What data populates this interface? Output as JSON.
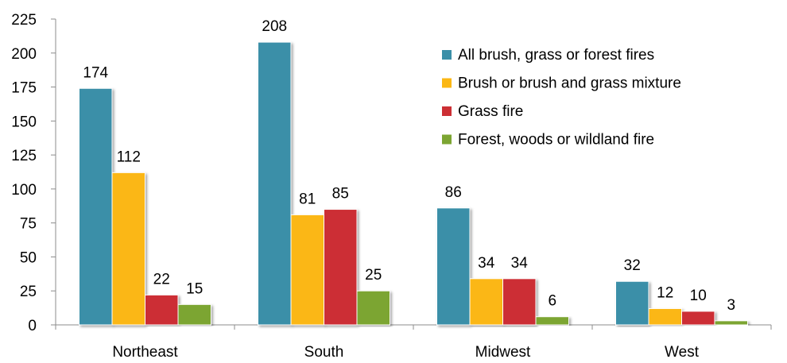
{
  "chart_data": {
    "type": "bar",
    "categories": [
      "Northeast",
      "South",
      "Midwest",
      "West"
    ],
    "series": [
      {
        "name": "All brush, grass or forest fires",
        "color": "#3a8fa8",
        "values": [
          174,
          208,
          86,
          32
        ]
      },
      {
        "name": "Brush or brush and grass mixture",
        "color": "#fbb714",
        "values": [
          112,
          81,
          34,
          12
        ]
      },
      {
        "name": "Grass fire",
        "color": "#cc2f34",
        "values": [
          22,
          85,
          34,
          10
        ]
      },
      {
        "name": "Forest, woods or wildland fire",
        "color": "#7ca532",
        "values": [
          15,
          25,
          6,
          3
        ]
      }
    ],
    "ylim": [
      0,
      225
    ],
    "yticks": [
      0,
      25,
      50,
      75,
      100,
      125,
      150,
      175,
      200,
      225
    ],
    "title": "",
    "xlabel": "",
    "ylabel": "",
    "grid": false,
    "legend_position": "top-right",
    "data_labels": true
  }
}
